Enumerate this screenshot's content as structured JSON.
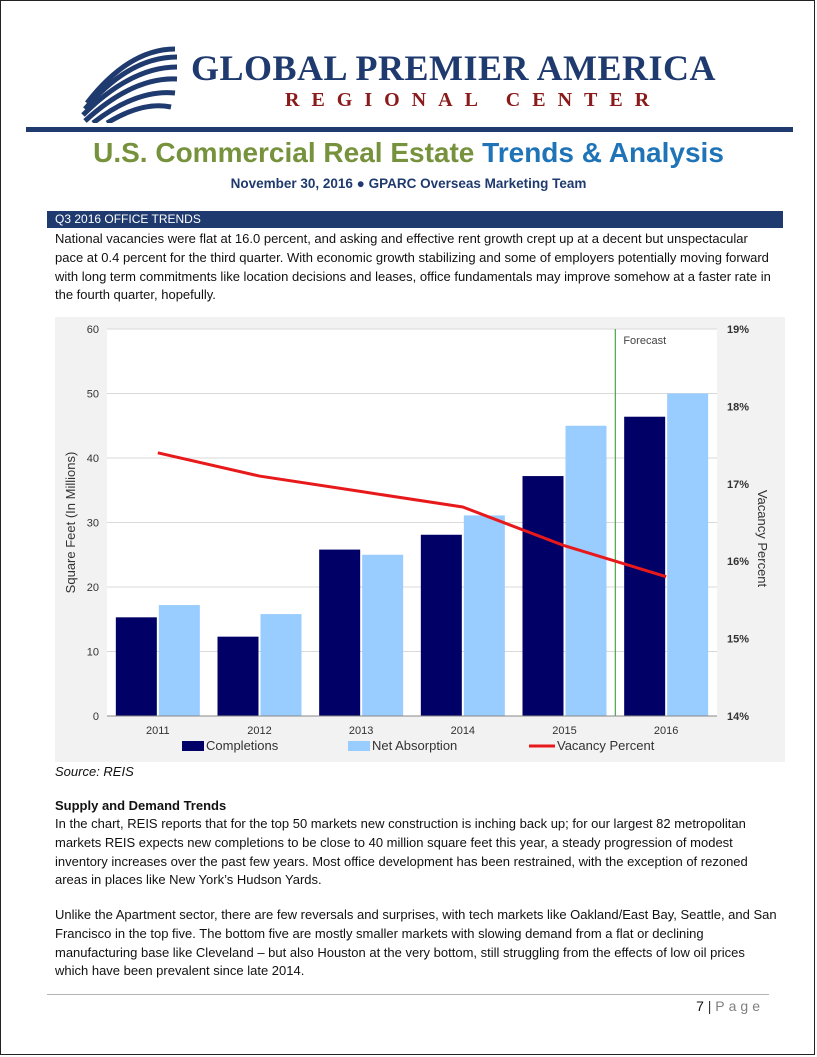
{
  "logo": {
    "name": "GLOBAL PREMIER AMERICA",
    "sub": "REGIONAL CENTER"
  },
  "title": {
    "part1": "U.S. Commercial Real Estate",
    "part2": "Trends & Analysis"
  },
  "subtitle": "November 30, 2016 ● GPARC Overseas Marketing Team",
  "section_header": "Q3 2016 OFFICE TRENDS",
  "intro": "National vacancies were flat at 16.0 percent, and asking and effective rent growth crept up at a decent but unspectacular pace at 0.4 percent for the third quarter.  With economic growth stabilizing and some of employers potentially moving forward with long term commitments like location decisions and leases, office fundamentals may improve somehow at a faster rate in the fourth quarter, hopefully.",
  "chart_data": {
    "type": "bar",
    "categories": [
      "2011",
      "2012",
      "2013",
      "2014",
      "2015",
      "2016"
    ],
    "series": [
      {
        "name": "Completions",
        "kind": "bar",
        "axis": "left",
        "color": "#000066",
        "values": [
          15.3,
          12.3,
          25.8,
          28.1,
          37.2,
          46.4
        ]
      },
      {
        "name": "Net Absorption",
        "kind": "bar",
        "axis": "left",
        "color": "#99ccff",
        "values": [
          17.2,
          15.8,
          25.0,
          31.1,
          45.0,
          50.0
        ]
      },
      {
        "name": "Vacancy Percent",
        "kind": "line",
        "axis": "right",
        "color": "#e8191b",
        "x": [
          "2011",
          "2012",
          "2013",
          "2014",
          "2015",
          "2016"
        ],
        "values": [
          17.4,
          17.1,
          16.9,
          16.7,
          16.2,
          15.8
        ]
      }
    ],
    "ylabel": "Square Feet (In Millions)",
    "ylim": [
      0,
      60
    ],
    "yticks": [
      "0",
      "10",
      "20",
      "30",
      "40",
      "50",
      "60"
    ],
    "y2label": "Vacancy Percent",
    "y2lim": [
      14,
      19
    ],
    "y2ticks": [
      "14%",
      "15%",
      "16%",
      "17%",
      "18%",
      "19%"
    ],
    "annotation": "Forecast",
    "forecast_after": "2015",
    "legend": [
      "Completions",
      "Net Absorption",
      "Vacancy Percent"
    ],
    "legend_position": "bottom"
  },
  "source": "Source: REIS",
  "supply_heading": "Supply and Demand Trends",
  "supply_p1": "In the chart, REIS reports that for the top 50 markets new construction is inching back up; for our largest 82 metropolitan markets REIS expects new completions to be close to 40 million square feet this year, a steady progression of modest inventory increases over the past few years.  Most office development has been restrained, with the exception of rezoned areas in places like New York’s Hudson Yards.",
  "supply_p2": "Unlike the Apartment sector, there are few reversals and surprises, with tech markets like Oakland/East Bay, Seattle, and San Francisco in the top five. The bottom five are mostly smaller markets with slowing demand from a flat or declining manufacturing base like Cleveland – but also Houston at the very bottom, still struggling from the effects of low oil prices which have been prevalent since late 2014.",
  "footer": {
    "page_number": "7",
    "separator": "|",
    "page_label": "Page"
  }
}
